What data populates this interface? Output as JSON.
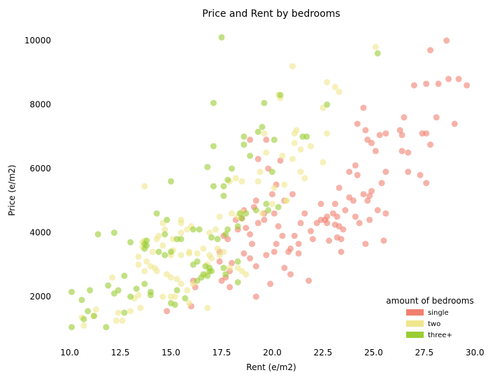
{
  "chart_data": {
    "type": "scatter",
    "title": "Price and Rent by bedrooms",
    "xlabel": "Rent (e/m2)",
    "ylabel": "Price (e/m2)",
    "xlim": [
      9.6,
      30.3
    ],
    "ylim": [
      560,
      10480
    ],
    "x_ticks": [
      10.0,
      12.5,
      15.0,
      17.5,
      20.0,
      22.5,
      25.0,
      27.5,
      30.0
    ],
    "x_tick_labels": [
      "10.0",
      "12.5",
      "15.0",
      "17.5",
      "20.0",
      "22.5",
      "25.0",
      "27.5",
      "30.0"
    ],
    "y_ticks": [
      2000,
      4000,
      6000,
      8000,
      10000
    ],
    "y_tick_labels": [
      "2000",
      "4000",
      "6000",
      "8000",
      "10000"
    ],
    "grid": false,
    "legend": {
      "title": "amount of bedrooms",
      "placement": "lower-right"
    },
    "series": [
      {
        "name": "single",
        "color": "#f08070",
        "points": [
          [
            28.6,
            10000
          ],
          [
            27.8,
            9700
          ],
          [
            28.7,
            8800
          ],
          [
            29.2,
            8800
          ],
          [
            29.6,
            8600
          ],
          [
            27.6,
            8650
          ],
          [
            28.2,
            8650
          ],
          [
            27.0,
            8600
          ],
          [
            29.0,
            7400
          ],
          [
            28.1,
            7600
          ],
          [
            26.5,
            7600
          ],
          [
            27.6,
            7100
          ],
          [
            27.4,
            7100
          ],
          [
            26.3,
            7200
          ],
          [
            25.3,
            7050
          ],
          [
            25.6,
            7100
          ],
          [
            24.2,
            7400
          ],
          [
            24.6,
            7200
          ],
          [
            24.7,
            6900
          ],
          [
            24.9,
            6800
          ],
          [
            25.1,
            6550
          ],
          [
            26.4,
            6550
          ],
          [
            26.7,
            6500
          ],
          [
            27.8,
            6750
          ],
          [
            24.5,
            7900
          ],
          [
            26.4,
            7050
          ],
          [
            23.8,
            5900
          ],
          [
            24.1,
            6100
          ],
          [
            24.2,
            5800
          ],
          [
            25.6,
            5900
          ],
          [
            26.7,
            5900
          ],
          [
            27.3,
            5800
          ],
          [
            27.6,
            5550
          ],
          [
            25.4,
            5550
          ],
          [
            24.9,
            5300
          ],
          [
            24.8,
            5150
          ],
          [
            24.5,
            5200
          ],
          [
            24.0,
            5000
          ],
          [
            23.8,
            5100
          ],
          [
            23.3,
            5400
          ],
          [
            23.1,
            4900
          ],
          [
            23.6,
            4700
          ],
          [
            23.0,
            4600
          ],
          [
            23.2,
            4500
          ],
          [
            22.7,
            4500
          ],
          [
            22.4,
            4400
          ],
          [
            22.2,
            4300
          ],
          [
            22.6,
            4400
          ],
          [
            23.1,
            4250
          ],
          [
            23.3,
            4200
          ],
          [
            23.5,
            4100
          ],
          [
            24.3,
            4300
          ],
          [
            24.1,
            4500
          ],
          [
            24.8,
            4400
          ],
          [
            25.2,
            4700
          ],
          [
            25.6,
            4600
          ],
          [
            24.7,
            5000
          ],
          [
            21.6,
            4600
          ],
          [
            21.4,
            4300
          ],
          [
            21.9,
            4050
          ],
          [
            21.1,
            3900
          ],
          [
            21.3,
            3650
          ],
          [
            22.0,
            3800
          ],
          [
            23.2,
            3850
          ],
          [
            23.4,
            3800
          ],
          [
            23.4,
            3400
          ],
          [
            22.8,
            3750
          ],
          [
            25.5,
            3750
          ],
          [
            24.6,
            3650
          ],
          [
            22.4,
            4900
          ],
          [
            22.7,
            4300
          ],
          [
            21.0,
            5200
          ],
          [
            20.6,
            5000
          ],
          [
            20.0,
            5200
          ],
          [
            20.2,
            5500
          ],
          [
            19.8,
            6000
          ],
          [
            20.4,
            6250
          ],
          [
            19.7,
            6900
          ],
          [
            18.9,
            6900
          ],
          [
            19.3,
            6300
          ],
          [
            19.2,
            5000
          ],
          [
            19.1,
            4800
          ],
          [
            19.6,
            4400
          ],
          [
            20.1,
            4600
          ],
          [
            19.6,
            4600
          ],
          [
            18.6,
            4700
          ],
          [
            18.5,
            4450
          ],
          [
            18.2,
            4400
          ],
          [
            18.7,
            4150
          ],
          [
            18.3,
            4100
          ],
          [
            19.3,
            4300
          ],
          [
            20.3,
            4200
          ],
          [
            20.5,
            3900
          ],
          [
            20.2,
            3650
          ],
          [
            20.1,
            3400
          ],
          [
            20.9,
            3500
          ],
          [
            21.3,
            3350
          ],
          [
            20.8,
            3400
          ],
          [
            18.9,
            3950
          ],
          [
            19.0,
            3650
          ],
          [
            18.6,
            3350
          ],
          [
            18.9,
            3200
          ],
          [
            19.7,
            3300
          ],
          [
            19.2,
            2950
          ],
          [
            20.6,
            2900
          ],
          [
            20.9,
            2700
          ],
          [
            19.9,
            2400
          ],
          [
            21.8,
            2500
          ],
          [
            17.6,
            3900
          ],
          [
            17.8,
            3800
          ],
          [
            17.4,
            3400
          ],
          [
            17.4,
            3100
          ],
          [
            18.0,
            3050
          ],
          [
            17.9,
            2800
          ],
          [
            17.7,
            2600
          ],
          [
            17.5,
            2500
          ],
          [
            17.9,
            2300
          ],
          [
            19.2,
            2000
          ],
          [
            16.2,
            2300
          ],
          [
            16.1,
            2500
          ],
          [
            16.0,
            1700
          ],
          [
            14.8,
            1550
          ]
        ]
      },
      {
        "name": "two",
        "color": "#f0e68c",
        "points": [
          [
            25.1,
            9800
          ],
          [
            21.0,
            9200
          ],
          [
            22.7,
            8700
          ],
          [
            23.1,
            8550
          ],
          [
            23.3,
            8400
          ],
          [
            20.3,
            8300
          ],
          [
            20.4,
            8200
          ],
          [
            22.5,
            7900
          ],
          [
            19.6,
            7100
          ],
          [
            21.1,
            7100
          ],
          [
            21.1,
            6800
          ],
          [
            21.2,
            7200
          ],
          [
            22.7,
            7100
          ],
          [
            21.9,
            6700
          ],
          [
            21.4,
            6600
          ],
          [
            19.7,
            6500
          ],
          [
            20.5,
            6400
          ],
          [
            21.0,
            6300
          ],
          [
            22.5,
            6200
          ],
          [
            21.4,
            5900
          ],
          [
            20.6,
            5500
          ],
          [
            21.6,
            5700
          ],
          [
            20.7,
            5000
          ],
          [
            19.3,
            5600
          ],
          [
            18.5,
            5600
          ],
          [
            17.9,
            5600
          ],
          [
            18.2,
            5700
          ],
          [
            19.4,
            5900
          ],
          [
            20.1,
            5400
          ],
          [
            20.7,
            5000
          ],
          [
            20.0,
            4900
          ],
          [
            19.5,
            4600
          ],
          [
            18.5,
            4650
          ],
          [
            18.3,
            4500
          ],
          [
            18.0,
            4600
          ],
          [
            17.4,
            4500
          ],
          [
            17.2,
            4100
          ],
          [
            16.9,
            4000
          ],
          [
            16.0,
            4200
          ],
          [
            15.8,
            4100
          ],
          [
            15.5,
            4400
          ],
          [
            15.5,
            4300
          ],
          [
            15.5,
            4000
          ],
          [
            15.1,
            3800
          ],
          [
            14.6,
            4300
          ],
          [
            14.7,
            4100
          ],
          [
            14.4,
            3900
          ],
          [
            14.3,
            3800
          ],
          [
            14.1,
            3400
          ],
          [
            14.6,
            3600
          ],
          [
            13.7,
            3750
          ],
          [
            13.6,
            3700
          ],
          [
            13.6,
            3550
          ],
          [
            13.7,
            2800
          ],
          [
            13.8,
            3100
          ],
          [
            13.4,
            3250
          ],
          [
            13.4,
            3000
          ],
          [
            14.2,
            2900
          ],
          [
            14.0,
            2950
          ],
          [
            14.3,
            2800
          ],
          [
            14.8,
            2700
          ],
          [
            15.0,
            2600
          ],
          [
            15.0,
            3300
          ],
          [
            15.1,
            3450
          ],
          [
            15.5,
            3300
          ],
          [
            15.9,
            3350
          ],
          [
            15.9,
            3400
          ],
          [
            16.3,
            3350
          ],
          [
            16.6,
            3500
          ],
          [
            17.3,
            3500
          ],
          [
            17.4,
            3300
          ],
          [
            16.9,
            3300
          ],
          [
            16.8,
            3000
          ],
          [
            17.0,
            3200
          ],
          [
            17.6,
            3400
          ],
          [
            17.9,
            2900
          ],
          [
            18.3,
            2900
          ],
          [
            18.5,
            2800
          ],
          [
            18.7,
            2700
          ],
          [
            16.7,
            2700
          ],
          [
            16.1,
            2400
          ],
          [
            15.3,
            2550
          ],
          [
            15.5,
            2400
          ],
          [
            15.0,
            2000
          ],
          [
            14.6,
            2000
          ],
          [
            15.2,
            2000
          ],
          [
            15.9,
            1800
          ],
          [
            15.8,
            2200
          ],
          [
            16.8,
            1650
          ],
          [
            13.7,
            5450
          ],
          [
            13.5,
            1650
          ],
          [
            13.2,
            1950
          ],
          [
            13.4,
            2050
          ],
          [
            12.1,
            2600
          ],
          [
            11.2,
            1400
          ],
          [
            11.3,
            1600
          ],
          [
            10.7,
            1100
          ],
          [
            10.6,
            1350
          ],
          [
            12.4,
            1500
          ],
          [
            12.3,
            1250
          ],
          [
            12.6,
            1250
          ],
          [
            13.0,
            1550
          ]
        ]
      },
      {
        "name": "three+",
        "color": "#9acd32",
        "points": [
          [
            17.5,
            10100
          ],
          [
            25.2,
            9600
          ],
          [
            22.7,
            8000
          ],
          [
            19.6,
            8050
          ],
          [
            17.1,
            8050
          ],
          [
            20.4,
            8300
          ],
          [
            19.5,
            7300
          ],
          [
            19.3,
            7150
          ],
          [
            18.6,
            7000
          ],
          [
            18.6,
            6750
          ],
          [
            20.1,
            6900
          ],
          [
            21.5,
            7000
          ],
          [
            21.7,
            7000
          ],
          [
            17.1,
            6700
          ],
          [
            16.8,
            6050
          ],
          [
            18.9,
            6400
          ],
          [
            18.0,
            6000
          ],
          [
            20.0,
            5900
          ],
          [
            17.8,
            5650
          ],
          [
            17.1,
            5450
          ],
          [
            17.6,
            5450
          ],
          [
            17.6,
            5150
          ],
          [
            15.0,
            5600
          ],
          [
            20.3,
            4800
          ],
          [
            19.7,
            4900
          ],
          [
            19.8,
            4700
          ],
          [
            19.2,
            4700
          ],
          [
            18.7,
            4600
          ],
          [
            18.4,
            4600
          ],
          [
            18.5,
            4450
          ],
          [
            18.3,
            4200
          ],
          [
            17.8,
            4100
          ],
          [
            17.7,
            3950
          ],
          [
            17.3,
            3800
          ],
          [
            17.0,
            3850
          ],
          [
            16.4,
            4100
          ],
          [
            16.1,
            4100
          ],
          [
            15.5,
            3800
          ],
          [
            15.3,
            3800
          ],
          [
            14.8,
            4400
          ],
          [
            14.3,
            4600
          ],
          [
            14.7,
            3950
          ],
          [
            14.4,
            3400
          ],
          [
            14.7,
            3300
          ],
          [
            15.0,
            3400
          ],
          [
            13.8,
            3600
          ],
          [
            13.7,
            3500
          ],
          [
            13.7,
            3650
          ],
          [
            13.0,
            3700
          ],
          [
            12.2,
            4000
          ],
          [
            11.4,
            3950
          ],
          [
            16.3,
            3100
          ],
          [
            16.1,
            3000
          ],
          [
            16.7,
            2950
          ],
          [
            16.9,
            2900
          ],
          [
            16.9,
            2800
          ],
          [
            17.0,
            2800
          ],
          [
            16.3,
            2500
          ],
          [
            16.5,
            2600
          ],
          [
            16.6,
            2700
          ],
          [
            16.8,
            2650
          ],
          [
            17.7,
            2700
          ],
          [
            18.3,
            2450
          ],
          [
            17.6,
            2900
          ],
          [
            18.3,
            3100
          ],
          [
            15.0,
            1800
          ],
          [
            15.2,
            1750
          ],
          [
            15.7,
            1950
          ],
          [
            15.3,
            2200
          ],
          [
            14.0,
            2150
          ],
          [
            13.7,
            2400
          ],
          [
            13.3,
            2250
          ],
          [
            13.0,
            2000
          ],
          [
            12.7,
            2650
          ],
          [
            12.2,
            2100
          ],
          [
            12.4,
            2200
          ],
          [
            11.9,
            2350
          ],
          [
            11.0,
            2200
          ],
          [
            10.1,
            2150
          ],
          [
            10.6,
            1900
          ],
          [
            10.9,
            1550
          ],
          [
            11.2,
            1400
          ],
          [
            10.7,
            1300
          ],
          [
            10.1,
            1050
          ],
          [
            11.8,
            1050
          ],
          [
            12.7,
            1500
          ],
          [
            14.0,
            2050
          ],
          [
            13.8,
            3750
          ]
        ]
      }
    ]
  }
}
